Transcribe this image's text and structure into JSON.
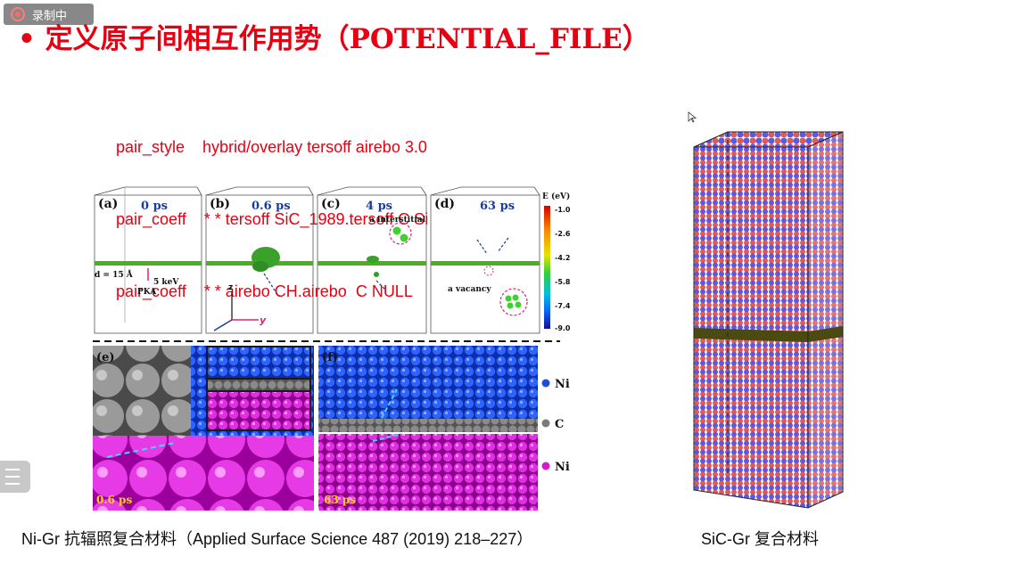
{
  "recorder": {
    "label": "录制中"
  },
  "slide": {
    "title": "• 定义原子间相互作用势（POTENTIAL_FILE）",
    "code_lines": [
      "pair_style    hybrid/overlay tersoff airebo 3.0",
      "pair_coeff    * * tersoff SiC_1989.tersoff C Si",
      "pair_coeff    * * airebo CH.airebo  C NULL"
    ],
    "caption_left": "Ni-Gr 抗辐照复合材料（Applied Surface Science 487 (2019) 218–227）",
    "caption_right": "SiC-Gr 复合材料"
  },
  "figure": {
    "panels": [
      {
        "tag": "(a)",
        "time": "0 ps"
      },
      {
        "tag": "(b)",
        "time": "0.6 ps"
      },
      {
        "tag": "(c)",
        "time": "4 ps"
      },
      {
        "tag": "(d)",
        "time": "63 ps"
      }
    ],
    "annotations": {
      "d_label": "d = 15 Å",
      "energy": "5 keV",
      "pka": "PKA",
      "interstitial": "a interstitial",
      "vacancy": "a vacancy",
      "axis_z": "z",
      "axis_y": "y"
    },
    "colorbar": {
      "title": "E (eV)",
      "ticks": [
        "-1.0",
        "-2.6",
        "-4.2",
        "-5.8",
        "-7.4",
        "-9.0"
      ]
    },
    "bottom_panels": [
      {
        "tag": "(e)",
        "time": "0.6 ps"
      },
      {
        "tag": "(f)",
        "time": "63 ps"
      }
    ],
    "legend": [
      "Ni",
      "C",
      "Ni"
    ],
    "colors": {
      "ni_blue": "#1f4fd8",
      "carbon": "#7a7a7a",
      "ni_magenta": "#d21ad2",
      "graphene": "#4caf1f"
    }
  }
}
